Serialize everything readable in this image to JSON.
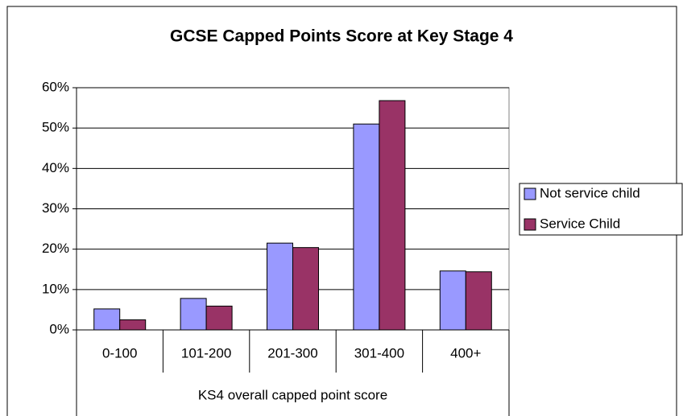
{
  "chart_data": {
    "type": "bar",
    "title": "GCSE Capped Points Score at Key Stage 4",
    "xlabel": "KS4 overall capped point score",
    "categories": [
      "0-100",
      "101-200",
      "201-300",
      "301-400",
      "400+"
    ],
    "series": [
      {
        "name": "Not service child",
        "color": "#9999ff",
        "values": [
          5.2,
          7.8,
          21.5,
          51,
          14.6
        ]
      },
      {
        "name": "Service Child",
        "color": "#993366",
        "values": [
          2.5,
          5.9,
          20.4,
          56.8,
          14.4
        ]
      }
    ],
    "ylim": [
      0,
      60
    ],
    "yticks": [
      {
        "value": 0,
        "label": "0%"
      },
      {
        "value": 10,
        "label": "10%"
      },
      {
        "value": 20,
        "label": "20%"
      },
      {
        "value": 30,
        "label": "30%"
      },
      {
        "value": 40,
        "label": "40%"
      },
      {
        "value": 50,
        "label": "50%"
      },
      {
        "value": 60,
        "label": "60%"
      }
    ],
    "grid": true,
    "legend": "right"
  }
}
